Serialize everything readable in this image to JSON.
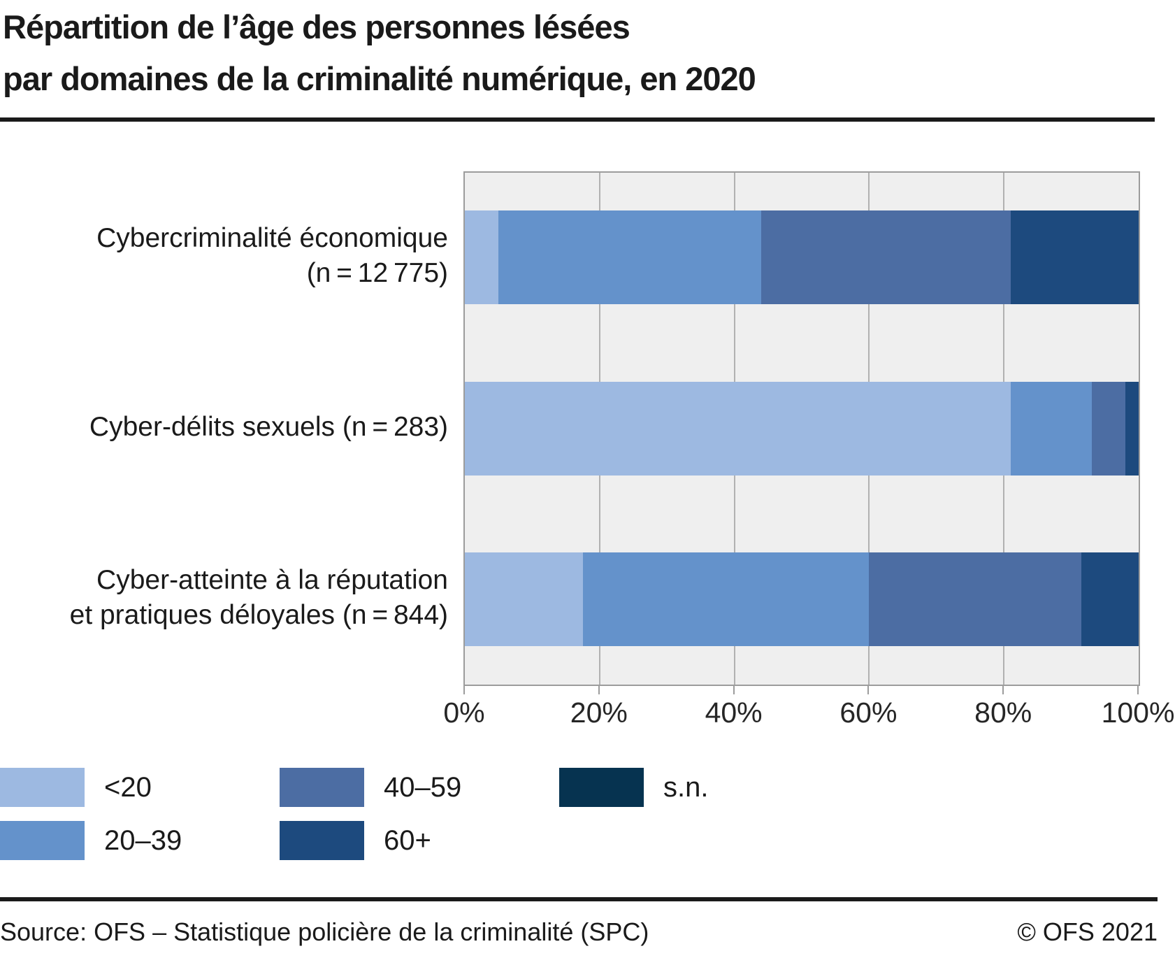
{
  "title": {
    "line1": "Répartition de l’âge des personnes lésées",
    "line2": "par domaines de la criminalité numérique, en 2020"
  },
  "chart_data": {
    "type": "bar",
    "orientation": "horizontal",
    "stacked": true,
    "unit": "percent",
    "categories": [
      "Cybercriminalité économique (n = 12 775)",
      "Cyber-délits sexuels (n = 283)",
      "Cyber-atteinte à la réputation et pratiques déloyales (n = 844)"
    ],
    "category_label_lines": [
      [
        "Cybercriminalité économique",
        "(n = 12 775)"
      ],
      [
        "Cyber-délits sexuels (n = 283)"
      ],
      [
        "Cyber-atteinte à la réputation",
        "et pratiques déloyales (n = 844)"
      ]
    ],
    "series": [
      {
        "name": "<20",
        "color": "#9db9e1",
        "values": [
          5,
          81,
          17.5
        ]
      },
      {
        "name": "20–39",
        "color": "#6492cb",
        "values": [
          39,
          12,
          42.5
        ]
      },
      {
        "name": "40–59",
        "color": "#4c6da3",
        "values": [
          37,
          5,
          31.5
        ]
      },
      {
        "name": "60+",
        "color": "#1d4a7e",
        "values": [
          19,
          2,
          8.5
        ]
      },
      {
        "name": "s.n.",
        "color": "#063350",
        "values": [
          0,
          0,
          0
        ]
      }
    ],
    "xlim": [
      0,
      100
    ],
    "x_ticks": [
      "0%",
      "20%",
      "40%",
      "60%",
      "80%",
      "100%"
    ],
    "grid": true,
    "grid_color": "#b1b1b1",
    "plot_background": "#efefef",
    "legend_position": "bottom"
  },
  "legend": {
    "items": [
      {
        "label": "<20",
        "color": "#9db9e1",
        "row": 0,
        "col": 0
      },
      {
        "label": "20–39",
        "color": "#6492cb",
        "row": 1,
        "col": 0
      },
      {
        "label": "40–59",
        "color": "#4c6da3",
        "row": 0,
        "col": 1
      },
      {
        "label": "60+",
        "color": "#1d4a7e",
        "row": 1,
        "col": 1
      },
      {
        "label": "s.n.",
        "color": "#063350",
        "row": 0,
        "col": 2
      }
    ]
  },
  "footer": {
    "source": "Source: OFS – Statistique policière de la criminalité (SPC)",
    "copyright": "© OFS 2021"
  }
}
